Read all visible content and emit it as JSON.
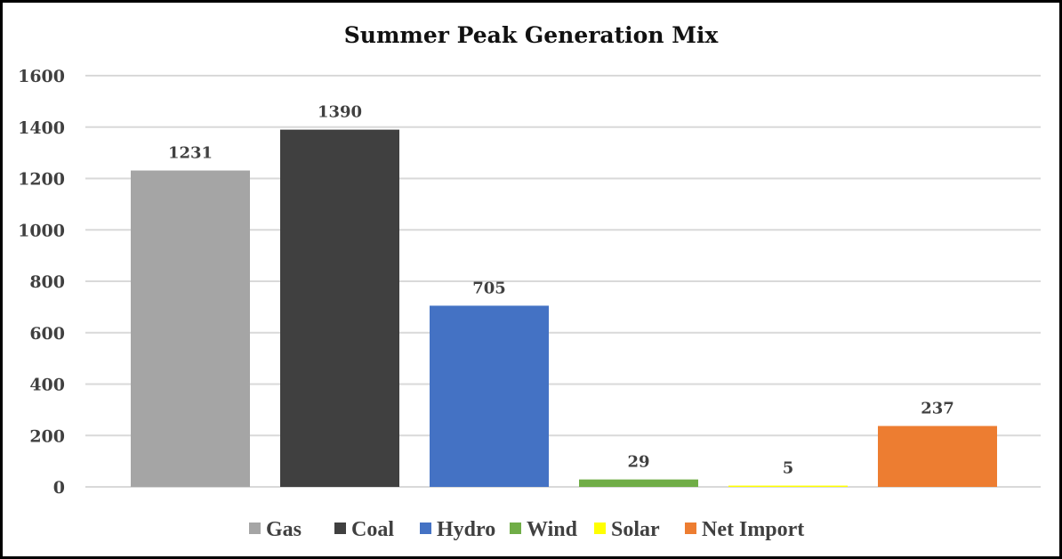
{
  "chart_data": {
    "type": "bar",
    "title": "Summer Peak Generation Mix",
    "xlabel": "",
    "ylabel": "",
    "ylim": [
      0,
      1600
    ],
    "yticks": [
      0,
      200,
      400,
      600,
      800,
      1000,
      1200,
      1400,
      1600
    ],
    "grid": true,
    "legend_position": "bottom",
    "series": [
      {
        "name": "Gas",
        "values": [
          1231
        ],
        "color": "#A5A5A5"
      },
      {
        "name": "Coal",
        "values": [
          1390
        ],
        "color": "#404040"
      },
      {
        "name": "Hydro",
        "values": [
          705
        ],
        "color": "#4472C4"
      },
      {
        "name": "Wind",
        "values": [
          29
        ],
        "color": "#70AD47"
      },
      {
        "name": "Solar",
        "values": [
          5
        ],
        "color": "#FFFF00"
      },
      {
        "name": "Net Import",
        "values": [
          237
        ],
        "color": "#ED7D31"
      }
    ]
  }
}
